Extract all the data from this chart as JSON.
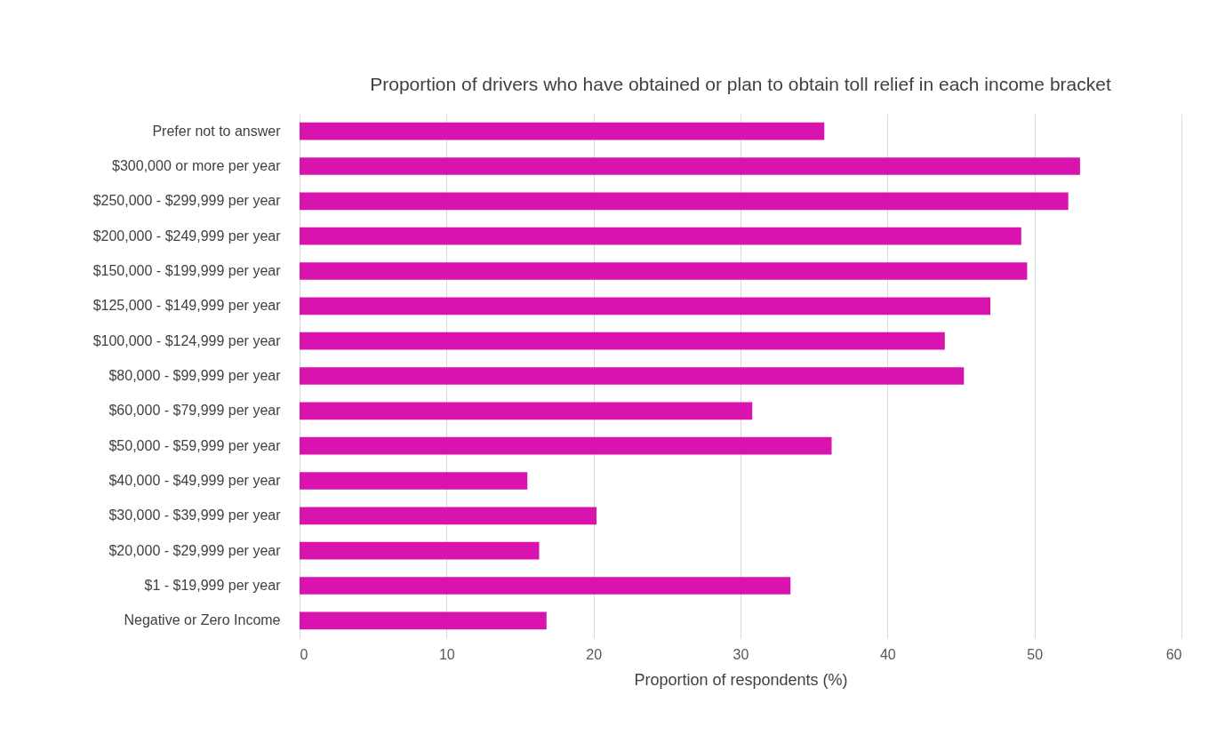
{
  "chart_data": {
    "type": "bar",
    "orientation": "horizontal",
    "title": "Proportion of drivers who have obtained or plan to obtain toll relief in each income bracket",
    "xlabel": "Proportion of respondents (%)",
    "categories": [
      "Prefer not to answer",
      "$300,000 or more per year",
      "$250,000 - $299,999 per year",
      "$200,000 - $249,999 per year",
      "$150,000 - $199,999 per year",
      "$125,000 - $149,999 per year",
      "$100,000 - $124,999 per year",
      "$80,000 - $99,999 per year",
      "$60,000 - $79,999 per year",
      "$50,000 - $59,999 per year",
      "$40,000 - $49,999 per year",
      "$30,000 - $39,999 per year",
      "$20,000 - $29,999 per year",
      "$1 - $19,999 per year",
      "Negative or Zero Income"
    ],
    "values": [
      35.7,
      53.1,
      52.3,
      49.1,
      49.5,
      47.0,
      43.9,
      45.2,
      30.8,
      36.2,
      15.5,
      20.2,
      16.3,
      33.4,
      16.8
    ],
    "color": "#d913ad",
    "xlim": [
      0,
      60
    ],
    "xticks": [
      0,
      10,
      20,
      30,
      40,
      50,
      60
    ],
    "grid": "x"
  }
}
